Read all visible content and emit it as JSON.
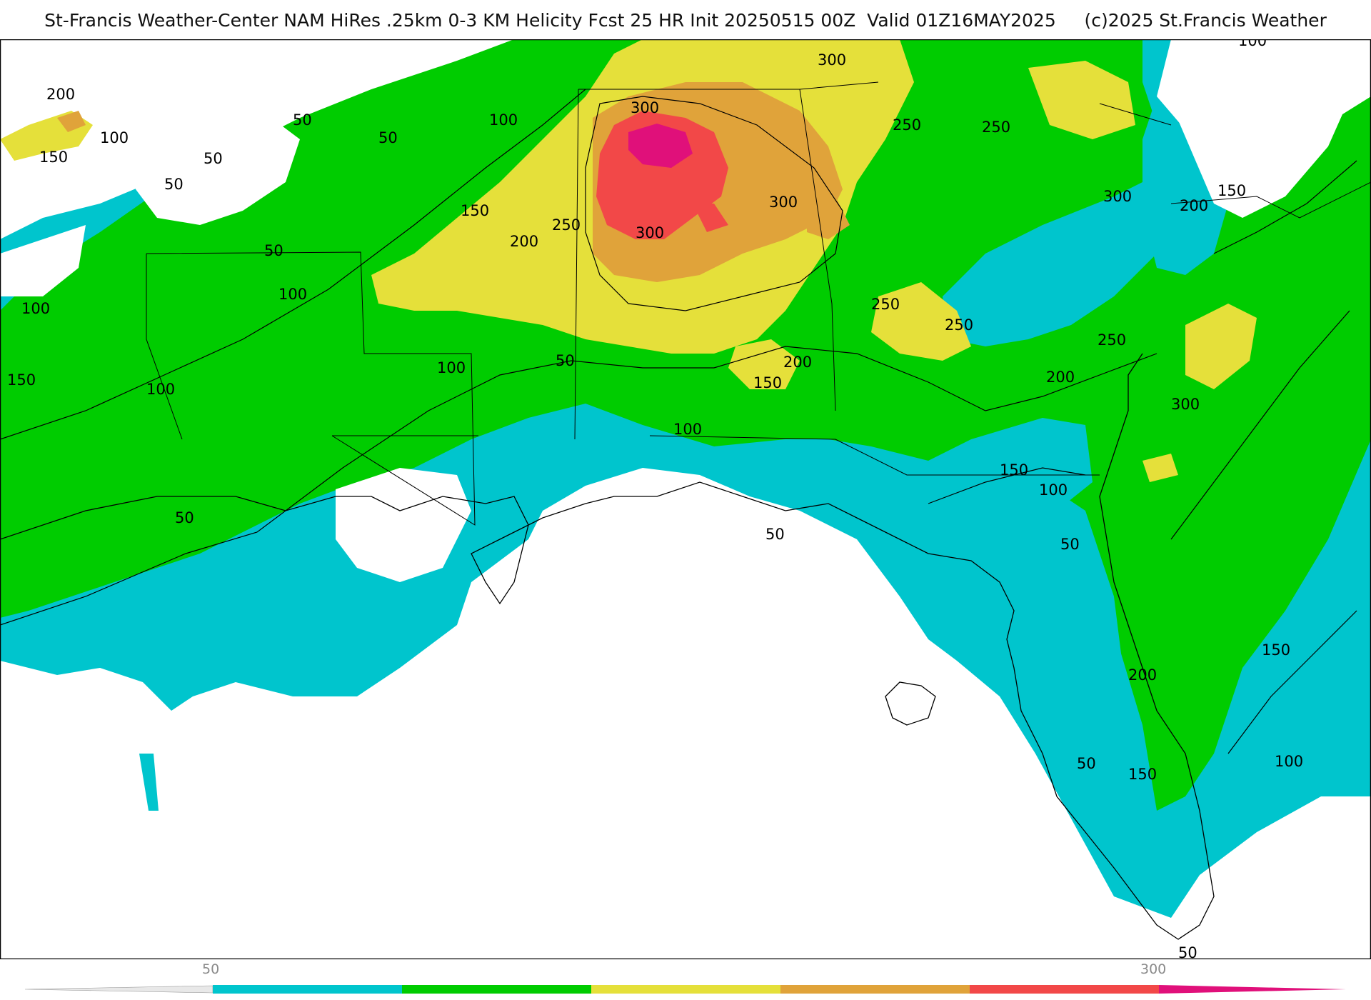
{
  "title": "St-Francis Weather-Center NAM HiRes .25km 0-3 KM Helicity Fcst 25 HR Init 20250515 00Z  Valid 01Z16MAY2025     (c)2025 St.Francis Weather",
  "contour_labels": [
    "50",
    "100",
    "150",
    "200",
    "250",
    "300"
  ],
  "legend": {
    "tick_labels": [
      "50",
      "300"
    ],
    "colors": [
      "#00c5cd",
      "#00cc00",
      "#e5e03a",
      "#e0a33a",
      "#f24848",
      "#e0107a"
    ]
  },
  "colors": {
    "band_50": "#00c5cd",
    "band_100": "#00cc00",
    "band_150": "#33d633",
    "band_200": "#e5e03a",
    "band_250": "#e0a33a",
    "band_300": "#f24848",
    "band_350": "#e0107a"
  }
}
